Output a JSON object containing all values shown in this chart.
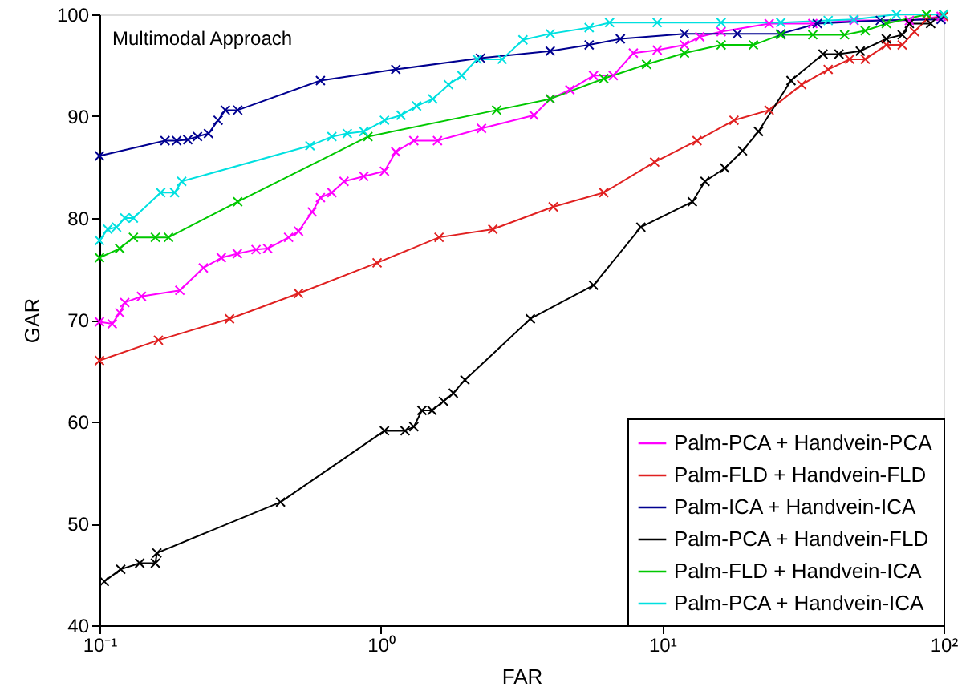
{
  "chart_data": {
    "type": "line",
    "xlabel": "FAR",
    "ylabel": "GAR",
    "annotations": [
      "Multimodal Approach"
    ],
    "log": "x",
    "xlim": [
      0.1,
      100
    ],
    "xticks": [
      {
        "value": 0.1,
        "label": "10⁻¹"
      },
      {
        "value": 1,
        "label": "10⁰"
      },
      {
        "value": 10,
        "label": "10¹"
      },
      {
        "value": 100,
        "label": "10²"
      }
    ],
    "ylim": [
      40,
      100
    ],
    "yticks": [
      40,
      50,
      60,
      70,
      80,
      90,
      100
    ],
    "grid": false,
    "legend": "bottom right",
    "marker": "cross",
    "line_style": "solid",
    "series": [
      {
        "name": "Palm-PCA + Handvein-PCA",
        "color": "#ff00ff",
        "x": [
          0.1,
          0.111,
          0.118,
          0.123,
          0.141,
          0.193,
          0.234,
          0.271,
          0.309,
          0.36,
          0.396,
          0.47,
          0.51,
          0.57,
          0.61,
          0.67,
          0.74,
          0.87,
          1.03,
          1.13,
          1.31,
          1.59,
          2.28,
          3.5,
          4.0,
          4.7,
          5.7,
          6.7,
          7.9,
          9.6,
          12,
          13.6,
          16.2,
          24,
          34.3,
          48.1,
          75.6,
          98
        ],
        "values": [
          69.8,
          69.6,
          70.7,
          71.7,
          72.3,
          72.9,
          75.1,
          76.1,
          76.5,
          76.9,
          77.0,
          78.1,
          78.7,
          80.6,
          82.0,
          82.5,
          83.6,
          84.1,
          84.6,
          86.5,
          87.6,
          87.6,
          88.8,
          90.1,
          91.7,
          92.6,
          94.0,
          94.0,
          96.2,
          96.5,
          97.0,
          97.8,
          98.3,
          99.1,
          99.1,
          99.4,
          99.4,
          99.8
        ]
      },
      {
        "name": "Palm-FLD + Handvein-FLD",
        "color": "#e02020",
        "x": [
          0.1,
          0.162,
          0.29,
          0.51,
          0.97,
          1.61,
          2.5,
          4.1,
          6.2,
          9.4,
          13.3,
          18,
          24,
          31.3,
          38.9,
          46.4,
          52.7,
          62.6,
          71.3,
          78.8,
          87,
          100
        ],
        "values": [
          66.0,
          68.0,
          70.1,
          72.6,
          75.6,
          78.1,
          78.9,
          81.1,
          82.5,
          85.5,
          87.6,
          89.6,
          90.6,
          93.1,
          94.6,
          95.6,
          95.6,
          97.0,
          97.0,
          98.3,
          99.5,
          99.8
        ]
      },
      {
        "name": "Palm-ICA + Handvein-ICA",
        "color": "#000090",
        "x": [
          0.1,
          0.171,
          0.188,
          0.206,
          0.223,
          0.244,
          0.264,
          0.28,
          0.31,
          0.61,
          1.13,
          2.26,
          4.0,
          5.5,
          7.1,
          12,
          18.5,
          26.4,
          35.6,
          59.6,
          98
        ],
        "values": [
          86.1,
          87.6,
          87.6,
          87.7,
          88.0,
          88.3,
          89.6,
          90.6,
          90.6,
          93.5,
          94.6,
          95.7,
          96.4,
          97.0,
          97.6,
          98.1,
          98.1,
          98.1,
          99.1,
          99.4,
          99.5
        ]
      },
      {
        "name": "Palm-PCA + Handvein-FLD",
        "color": "#000000",
        "x": [
          0.104,
          0.119,
          0.139,
          0.158,
          0.16,
          0.44,
          1.03,
          1.22,
          1.31,
          1.4,
          1.52,
          1.67,
          1.81,
          1.99,
          3.4,
          5.7,
          8.4,
          12.8,
          14.2,
          16.7,
          19.3,
          22,
          28.7,
          37.3,
          42.5,
          50.6,
          62.6,
          71.3,
          75.6,
          90
        ],
        "values": [
          44.3,
          45.5,
          46.1,
          46.1,
          47.1,
          52.1,
          59.1,
          59.1,
          59.5,
          61.1,
          61.1,
          62.0,
          62.8,
          64.1,
          70.1,
          73.4,
          79.1,
          81.6,
          83.6,
          84.9,
          86.6,
          88.5,
          93.5,
          96.1,
          96.1,
          96.4,
          97.6,
          98.0,
          99.1,
          99.1
        ]
      },
      {
        "name": "Palm-FLD + Handvein-ICA",
        "color": "#00c800",
        "x": [
          0.1,
          0.118,
          0.132,
          0.158,
          0.176,
          0.31,
          0.9,
          2.58,
          4.0,
          6.2,
          8.8,
          12,
          16.2,
          21.1,
          26.4,
          34.3,
          44.5,
          52.7,
          62.6,
          87,
          100
        ],
        "values": [
          76.1,
          77.0,
          78.1,
          78.1,
          78.1,
          81.6,
          88.0,
          90.6,
          91.7,
          93.7,
          95.1,
          96.2,
          97.0,
          97.0,
          98.0,
          98.0,
          98.0,
          98.4,
          99.1,
          100,
          100
        ]
      },
      {
        "name": "Palm-PCA + Handvein-ICA",
        "color": "#00e0e0",
        "x": [
          0.1,
          0.107,
          0.115,
          0.123,
          0.132,
          0.165,
          0.185,
          0.196,
          0.56,
          0.67,
          0.76,
          0.87,
          1.03,
          1.18,
          1.34,
          1.53,
          1.74,
          1.94,
          2.2,
          2.7,
          3.2,
          4.0,
          5.5,
          6.5,
          9.6,
          16.2,
          26.4,
          38.9,
          48,
          68,
          100
        ],
        "values": [
          77.8,
          78.9,
          79.1,
          80.0,
          80.0,
          82.5,
          82.5,
          83.6,
          87.1,
          88.0,
          88.3,
          88.5,
          89.6,
          90.1,
          91.0,
          91.7,
          93.1,
          94.0,
          95.6,
          95.6,
          97.5,
          98.1,
          98.7,
          99.2,
          99.2,
          99.2,
          99.2,
          99.4,
          99.5,
          100,
          100
        ]
      }
    ]
  }
}
